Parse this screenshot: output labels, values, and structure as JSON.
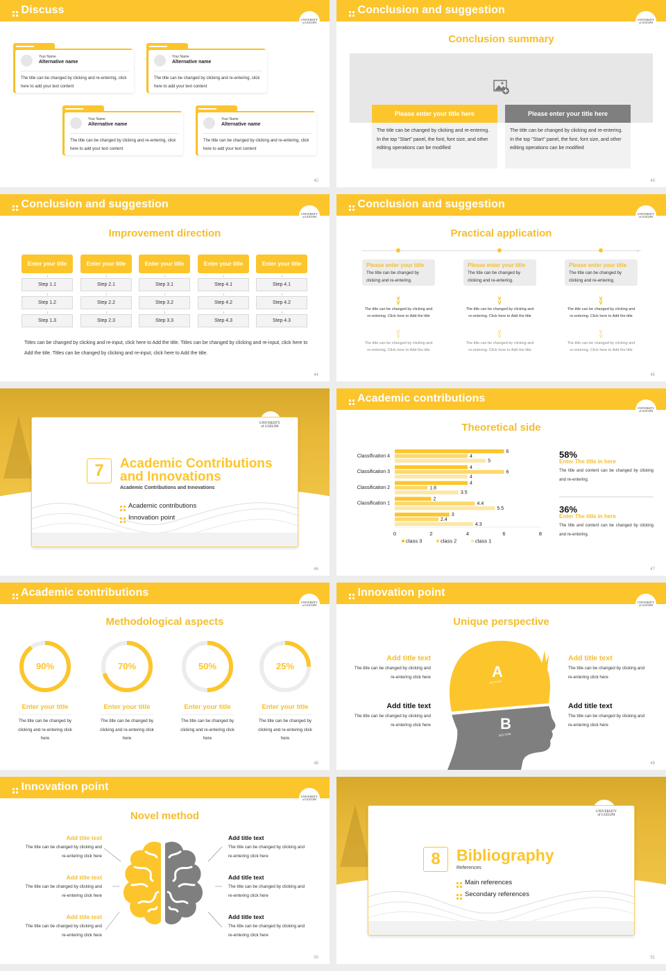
{
  "colors": {
    "accent": "#fcc52b",
    "accent_text": "#f5bd2a",
    "gray": "#7f7f7f",
    "light_gray": "#e8e7e7",
    "background": "#ededed"
  },
  "logo_text": [
    "UNIVERSITY",
    "of GUELPH"
  ],
  "slides": [
    {
      "page": "42",
      "header": "Discuss",
      "cards": [
        {
          "small": "Your Name",
          "name": "Alternative name",
          "text": "The title can be changed by clicking and re-entering, click here to add your text content"
        },
        {
          "small": "Your Name",
          "name": "Alternative name",
          "text": "The title can be changed by clicking and re-entering, click here to add your text content"
        },
        {
          "small": "Your Name",
          "name": "Alternative name",
          "text": "The title can be changed by clicking and re-entering, click here to add your text content"
        },
        {
          "small": "Your Name",
          "name": "Alternative name",
          "text": "The title can be changed by clicking and re-entering, click here to add your text content"
        }
      ]
    },
    {
      "page": "43",
      "header": "Conclusion and suggestion",
      "subtitle": "Conclusion summary",
      "boxes": [
        {
          "title": "Please enter your title here",
          "text": "The title can be changed by clicking and re-entering. In the top \"Start\" panel, the font, font size, and other editing operations can be modified"
        },
        {
          "title": "Please enter your title here",
          "text": "The title can be changed by clicking and re-entering. In the top \"Start\" panel, the font, font size, and other editing operations can be modified"
        }
      ]
    },
    {
      "page": "44",
      "header": "Conclusion and suggestion",
      "subtitle": "Improvement direction",
      "columns": [
        {
          "title": "Enter your title",
          "steps": [
            "Step 1.1",
            "Step 1.2",
            "Step 1.3"
          ]
        },
        {
          "title": "Enter your title",
          "steps": [
            "Step 2.1",
            "Step 2.2",
            "Step 2.3"
          ]
        },
        {
          "title": "Enter your title",
          "steps": [
            "Step 3.1",
            "Step 3.2",
            "Step 3.3"
          ]
        },
        {
          "title": "Enter your title",
          "steps": [
            "Step 4.1",
            "Step 4.2",
            "Step 4.3"
          ]
        },
        {
          "title": "Enter your title",
          "steps": [
            "Step 4.1",
            "Step 4.2",
            "Step 4.3"
          ]
        }
      ],
      "paragraph": "Titles can be changed by clicking and re-input, click here to Add the title. Titles can be changed by clicking and re-input, click here to Add the title. Titles can be changed by clicking and re-input, click here to Add the title."
    },
    {
      "page": "45",
      "header": "Conclusion and suggestion",
      "subtitle": "Practical application",
      "items": [
        {
          "title": "Please enter your title",
          "text": "The title can be changed by clicking and re-entering.",
          "step1": "The title can be changed by clicking and re-entering. Click here to Add the title",
          "step2": "The title can be changed by clicking and re-entering. Click here to Add the title"
        },
        {
          "title": "Please enter your title",
          "text": "The title can be changed by clicking and re-entering.",
          "step1": "The title can be changed by clicking and re-entering. Click here to Add the title",
          "step2": "The title can be changed by clicking and re-entering. Click here to Add the title"
        },
        {
          "title": "Please enter your title",
          "text": "The title can be changed by clicking and re-entering.",
          "step1": "The title can be changed by clicking and re-entering. Click here to Add the title",
          "step2": "The title can be changed by clicking and re-entering. Click here to Add the title"
        }
      ]
    },
    {
      "page": "46",
      "number": "7",
      "title_line1": "Academic Contributions",
      "title_line2": "and Innovations",
      "subtitle": "Academic Contributions and Innovations",
      "items": [
        "Academic contributions",
        "Innovation point"
      ]
    },
    {
      "page": "47",
      "header": "Academic contributions",
      "subtitle": "Theoretical side",
      "stats": [
        {
          "percent": "58%",
          "title": "Enter The title in here",
          "text": "The title and content can be changed by clicking and re-entering."
        },
        {
          "percent": "36%",
          "title": "Enter The title in here",
          "text": "The title and content can be changed by clicking and re-entering."
        }
      ]
    },
    {
      "page": "48",
      "header": "Academic contributions",
      "subtitle": "Methodological aspects",
      "rings": [
        {
          "value": 90,
          "label": "90%",
          "title": "Enter your title",
          "text": "The title can be changed by clicking and re-entering click here"
        },
        {
          "value": 70,
          "label": "70%",
          "title": "Enter your title",
          "text": "The title can be changed by clicking and re-entering click here"
        },
        {
          "value": 50,
          "label": "50%",
          "title": "Enter your title",
          "text": "The title can be changed by clicking and re-entering click here"
        },
        {
          "value": 25,
          "label": "25%",
          "title": "Enter your title",
          "text": "The title can be changed by clicking and re-entering click here"
        }
      ]
    },
    {
      "page": "49",
      "header": "Innovation point",
      "subtitle": "Unique perspective",
      "section_a": "A",
      "section_b": "B",
      "section_label": "SECTION",
      "texts": [
        {
          "title": "Add title text",
          "text": "The title can be changed by clicking and re-entering click here"
        },
        {
          "title": "Add title text",
          "text": "The title can be changed by clicking and re-entering click here"
        },
        {
          "title": "Add title text",
          "text": "The title can be changed by clicking and re-entering click here"
        },
        {
          "title": "Add title text",
          "text": "The title can be changed by clicking and re-entering click here"
        }
      ]
    },
    {
      "page": "50",
      "header": "Innovation point",
      "subtitle": "Novel method",
      "left": [
        {
          "title": "Add title text",
          "text": "The title can be changed by clicking and re-entering click here"
        },
        {
          "title": "Add title text",
          "text": "The title can be changed by clicking and re-entering click here"
        },
        {
          "title": "Add title text",
          "text": "The title can be changed by clicking and re-entering click here"
        }
      ],
      "right": [
        {
          "title": "Add title text",
          "text": "The title can be changed by clicking and re-entering click here"
        },
        {
          "title": "Add title text",
          "text": "The title can be changed by clicking and re-entering click here"
        },
        {
          "title": "Add title text",
          "text": "The title can be changed by clicking and re-entering click here"
        }
      ]
    },
    {
      "page": "51",
      "number": "8",
      "title": "Bibliography",
      "subtitle": "References",
      "items": [
        "Main references",
        "Secondary references"
      ]
    }
  ],
  "chart_data": {
    "type": "bar",
    "orientation": "horizontal",
    "title": "Theoretical side",
    "categories": [
      "",
      "Classification 1",
      "Classification 2",
      "Classification 3",
      "Classification 4"
    ],
    "series": [
      {
        "name": "class 3",
        "color": "#fcc52b",
        "values": [
          3,
          2,
          4,
          4,
          6
        ]
      },
      {
        "name": "class 2",
        "color": "#fcd86b",
        "values": [
          2.4,
          4.4,
          1.8,
          6,
          4
        ]
      },
      {
        "name": "class 1",
        "color": "#fde7a6",
        "values": [
          4.3,
          5.5,
          3.5,
          4,
          5
        ]
      }
    ],
    "xticks": [
      0,
      2,
      4,
      6,
      8
    ],
    "xlim": [
      0,
      8
    ],
    "grid": false,
    "legend_position": "bottom",
    "data_labels": true
  }
}
